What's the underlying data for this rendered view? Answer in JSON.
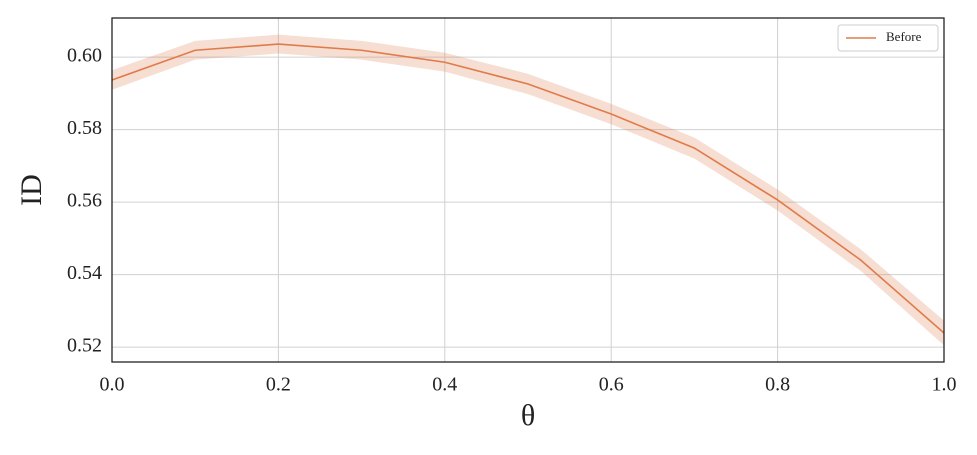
{
  "chart_data": {
    "type": "line",
    "xlabel": "θ",
    "ylabel": "ID",
    "x": [
      0,
      0.1,
      0.2,
      0.3,
      0.4,
      0.5,
      0.6,
      0.7,
      0.8,
      0.9,
      1.0
    ],
    "series": [
      {
        "name": "Before",
        "color": "#e07b4a",
        "values": [
          0.5937,
          0.6019,
          0.6036,
          0.6019,
          0.5986,
          0.5926,
          0.5843,
          0.5749,
          0.5606,
          0.544,
          0.5239
        ],
        "lower": [
          0.591,
          0.5993,
          0.601,
          0.5993,
          0.596,
          0.5898,
          0.5815,
          0.572,
          0.5577,
          0.541,
          0.5205
        ],
        "upper": [
          0.5964,
          0.6045,
          0.6062,
          0.6045,
          0.6012,
          0.5954,
          0.5871,
          0.5778,
          0.5635,
          0.547,
          0.5273
        ]
      }
    ],
    "xlim": [
      0,
      1
    ],
    "ylim": [
      0.5159,
      0.6108
    ],
    "xticks": [
      {
        "value": 0,
        "label": "0.0"
      },
      0.2,
      0.4,
      0.6,
      0.8,
      {
        "value": 1,
        "label": "1.0"
      }
    ],
    "yticks": [
      0.52,
      0.54,
      0.56,
      0.58,
      {
        "value": 0.6,
        "label": "0.60"
      }
    ],
    "grid": true,
    "legend": "upper right"
  }
}
